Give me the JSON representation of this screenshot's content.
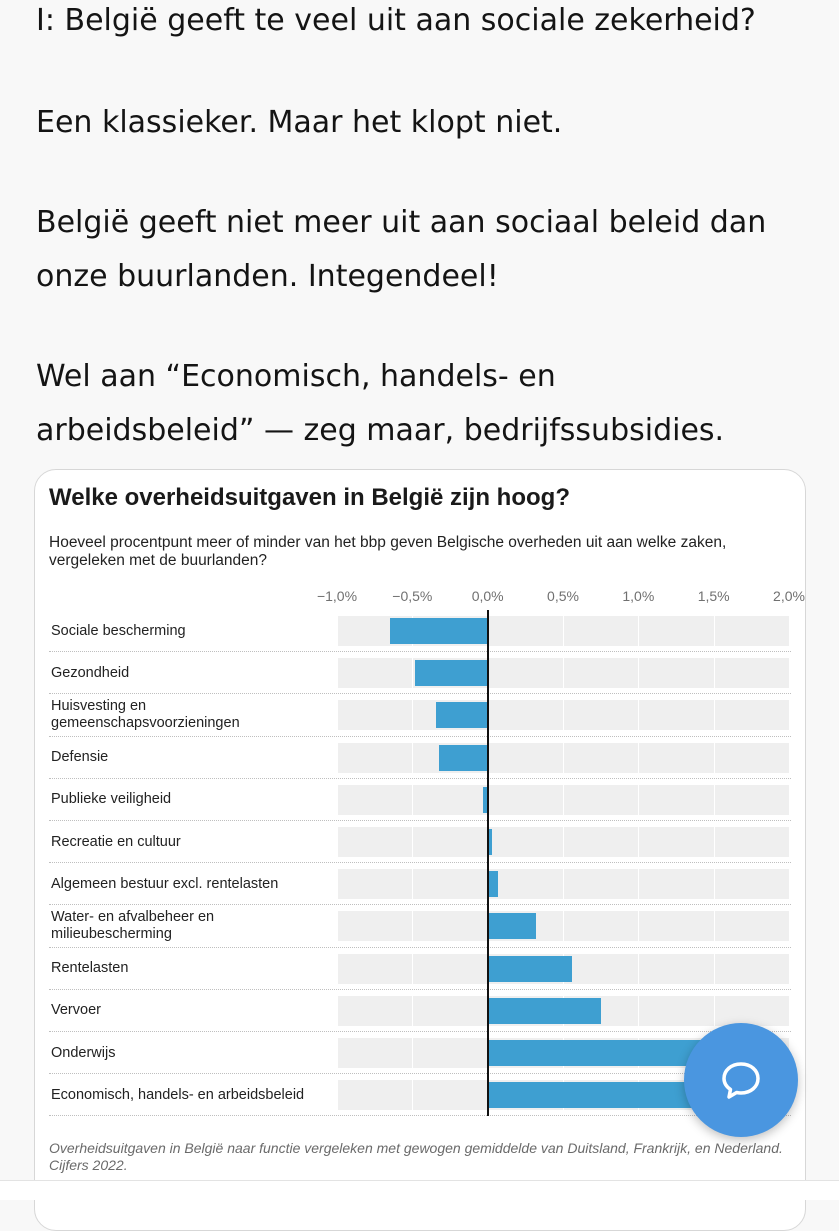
{
  "post": {
    "paragraph1": "I: België geeft te veel uit aan sociale zekerheid?",
    "paragraph2": "Een klassieker. Maar het klopt niet.",
    "paragraph3": "België geeft niet meer uit aan sociaal beleid dan\nonze buurlanden. Integendeel!",
    "paragraph4": "Wel aan “Economisch, handels- en\narbeidsbeleid” — zeg maar, bedrijfssubsidies."
  },
  "chart_data": {
    "type": "bar",
    "orientation": "horizontal",
    "title": "Welke overheidsuitgaven in België zijn hoog?",
    "subtitle": "Hoeveel procentpunt meer of minder van het bbp geven Belgische overheden uit aan welke zaken, vergeleken met de buurlanden?",
    "x_ticks": [
      "−1,0%",
      "−0,5%",
      "0,0%",
      "0,5%",
      "1,0%",
      "1,5%",
      "2,0%"
    ],
    "x_tick_values": [
      -1.0,
      -0.5,
      0.0,
      0.5,
      1.0,
      1.5,
      2.0
    ],
    "xlim": [
      -1.0,
      2.0
    ],
    "categories": [
      "Sociale bescherming",
      "Gezondheid",
      "Huisvesting en\ngemeenschapsvoorzieningen",
      "Defensie",
      "Publieke veiligheid",
      "Recreatie en cultuur",
      "Algemeen bestuur excl. rentelasten",
      "Water- en afvalbeheer en\nmilieubescherming",
      "Rentelasten",
      "Vervoer",
      "Onderwijs",
      "Economisch, handels- en arbeidsbeleid"
    ],
    "values": [
      -0.65,
      -0.48,
      -0.34,
      -0.32,
      -0.03,
      0.03,
      0.07,
      0.32,
      0.56,
      0.75,
      1.45,
      1.8
    ],
    "bar_color": "#3e9fd1",
    "grid": true,
    "caption": "Overheidsuitgaven in België naar functie vergeleken met gewogen gemiddelde van Duitsland, Frankrijk, en Nederland. Cijfers 2022."
  },
  "fab": {
    "icon": "speech-bubble-icon",
    "color": "#4a96e0"
  }
}
